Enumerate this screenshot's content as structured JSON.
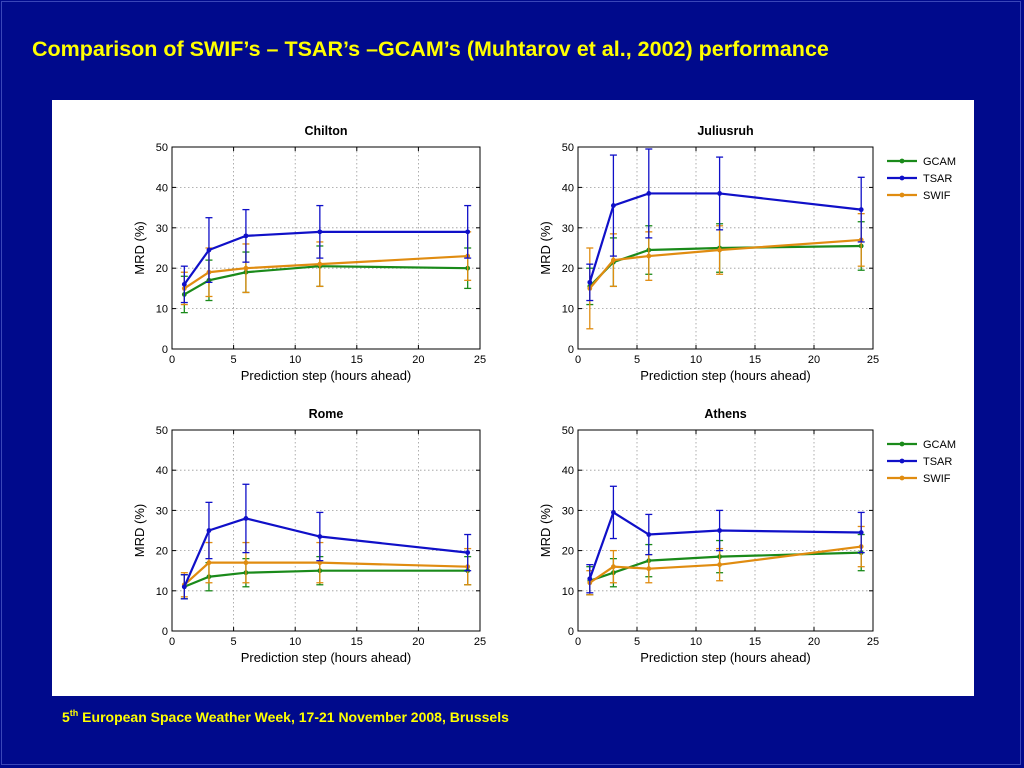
{
  "slide": {
    "title": "Comparison of SWIF’s – TSAR’s –GCAM’s (Muhtarov et al., 2002) performance",
    "background": "#000a8c",
    "title_color": "#ffff00",
    "footer": {
      "number": "5",
      "superscript": "th",
      "text": " European Space Weather Week, 17-21 November 2008, Brussels"
    }
  },
  "series_colors": {
    "GCAM": "#1a8a1a",
    "TSAR": "#1010c8",
    "SWIF": "#e08c10"
  },
  "chart_data": [
    {
      "type": "line",
      "title": "Chilton",
      "xlabel": "Prediction step (hours ahead)",
      "ylabel": "MRD (%)",
      "xlim": [
        0,
        25
      ],
      "ylim": [
        0,
        50
      ],
      "xticks": [
        0,
        5,
        10,
        15,
        20,
        25
      ],
      "yticks": [
        0,
        10,
        20,
        30,
        40,
        50
      ],
      "grid": true,
      "legend": null,
      "x": [
        1,
        3,
        6,
        12,
        24
      ],
      "series": [
        {
          "name": "GCAM",
          "values": [
            13.5,
            17,
            19,
            20.5,
            20
          ],
          "err_low": [
            4.5,
            5,
            5,
            5,
            5
          ],
          "err_high": [
            4.5,
            5,
            5,
            5,
            5
          ]
        },
        {
          "name": "TSAR",
          "values": [
            16,
            24.5,
            28,
            29,
            29
          ],
          "err_low": [
            4.5,
            8,
            6.5,
            6.5,
            6.5
          ],
          "err_high": [
            4.5,
            8,
            6.5,
            6.5,
            6.5
          ]
        },
        {
          "name": "SWIF",
          "values": [
            15,
            19,
            20,
            21,
            23
          ],
          "err_low": [
            4,
            6,
            6,
            5.5,
            6
          ],
          "err_high": [
            4,
            6,
            6,
            5.5,
            6
          ]
        }
      ]
    },
    {
      "type": "line",
      "title": "Juliusruh",
      "xlabel": "Prediction step (hours ahead)",
      "ylabel": "MRD (%)",
      "xlim": [
        0,
        25
      ],
      "ylim": [
        0,
        50
      ],
      "xticks": [
        0,
        5,
        10,
        15,
        20,
        25
      ],
      "yticks": [
        0,
        10,
        20,
        30,
        40,
        50
      ],
      "grid": true,
      "legend": "top-right outside",
      "x": [
        1,
        3,
        6,
        12,
        24
      ],
      "series": [
        {
          "name": "GCAM",
          "values": [
            15.5,
            21.5,
            24.5,
            25,
            25.5
          ],
          "err_low": [
            4.5,
            6,
            6,
            6,
            6
          ],
          "err_high": [
            4.5,
            6,
            6,
            6,
            6
          ]
        },
        {
          "name": "TSAR",
          "values": [
            16.5,
            35.5,
            38.5,
            38.5,
            34.5
          ],
          "err_low": [
            4.5,
            12.5,
            11,
            9,
            8
          ],
          "err_high": [
            4.5,
            12.5,
            11,
            9,
            8
          ]
        },
        {
          "name": "SWIF",
          "values": [
            15,
            22,
            23,
            24.5,
            27
          ],
          "err_low": [
            10,
            6.5,
            6,
            6,
            6.5
          ],
          "err_high": [
            10,
            6.5,
            6,
            6,
            6.5
          ]
        }
      ]
    },
    {
      "type": "line",
      "title": "Rome",
      "xlabel": "Prediction step (hours ahead)",
      "ylabel": "MRD (%)",
      "xlim": [
        0,
        25
      ],
      "ylim": [
        0,
        50
      ],
      "xticks": [
        0,
        5,
        10,
        15,
        20,
        25
      ],
      "yticks": [
        0,
        10,
        20,
        30,
        40,
        50
      ],
      "grid": true,
      "legend": null,
      "x": [
        1,
        3,
        6,
        12,
        24
      ],
      "series": [
        {
          "name": "GCAM",
          "values": [
            11,
            13.5,
            14.5,
            15,
            15
          ],
          "err_low": [
            3,
            3.5,
            3.5,
            3.5,
            3.5
          ],
          "err_high": [
            3,
            3.5,
            3.5,
            3.5,
            3.5
          ]
        },
        {
          "name": "TSAR",
          "values": [
            11,
            25,
            28,
            23.5,
            19.5
          ],
          "err_low": [
            3,
            7,
            8.5,
            6,
            4.5
          ],
          "err_high": [
            3,
            7,
            8.5,
            6,
            4.5
          ]
        },
        {
          "name": "SWIF",
          "values": [
            11.5,
            17,
            17,
            17,
            16
          ],
          "err_low": [
            3,
            5,
            5,
            5,
            4.5
          ],
          "err_high": [
            3,
            5,
            5,
            5,
            4.5
          ]
        }
      ]
    },
    {
      "type": "line",
      "title": "Athens",
      "xlabel": "Prediction step (hours ahead)",
      "ylabel": "MRD (%)",
      "xlim": [
        0,
        25
      ],
      "ylim": [
        0,
        50
      ],
      "xticks": [
        0,
        5,
        10,
        15,
        20,
        25
      ],
      "yticks": [
        0,
        10,
        20,
        30,
        40,
        50
      ],
      "grid": true,
      "legend": "top-right outside",
      "x": [
        1,
        3,
        6,
        12,
        24
      ],
      "series": [
        {
          "name": "GCAM",
          "values": [
            12.5,
            14.5,
            17.5,
            18.5,
            19.5
          ],
          "err_low": [
            3.5,
            3.5,
            4,
            4,
            4.5
          ],
          "err_high": [
            3.5,
            3.5,
            4,
            4,
            4.5
          ]
        },
        {
          "name": "TSAR",
          "values": [
            13,
            29.5,
            24,
            25,
            24.5
          ],
          "err_low": [
            3.5,
            6.5,
            5,
            5,
            5
          ],
          "err_high": [
            3.5,
            6.5,
            5,
            5,
            5
          ]
        },
        {
          "name": "SWIF",
          "values": [
            12,
            16,
            15.5,
            16.5,
            21
          ],
          "err_low": [
            3,
            4,
            3.5,
            4,
            5
          ],
          "err_high": [
            3,
            4,
            3.5,
            4,
            5
          ]
        }
      ]
    }
  ]
}
